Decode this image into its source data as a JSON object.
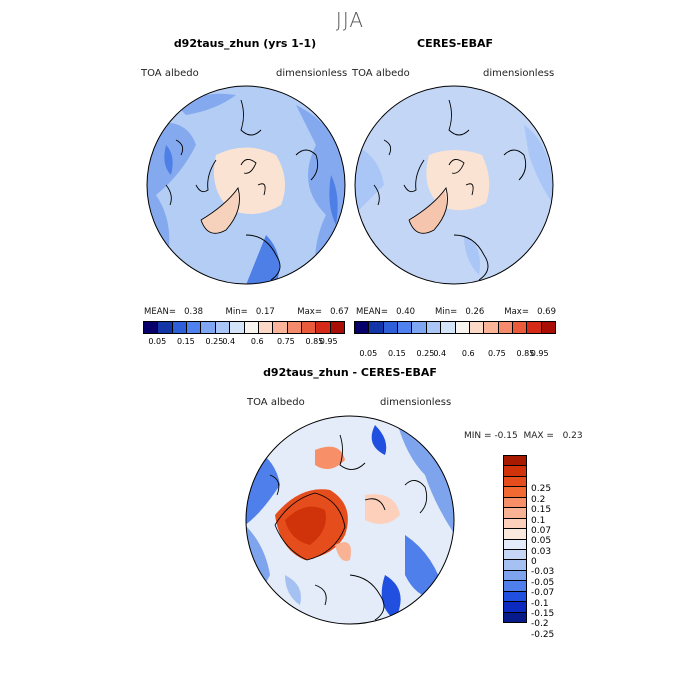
{
  "season": "JJA",
  "panels": [
    {
      "title": "d92taus_zhun (yrs 1-1)",
      "var_label": "TOA albedo",
      "units": "dimensionless",
      "stats": {
        "mean_label": "MEAN=",
        "mean": "0.38",
        "min_label": "Min=",
        "min": "0.17",
        "max_label": "Max=",
        "max": "0.67"
      }
    },
    {
      "title": "CERES-EBAF",
      "var_label": "TOA albedo",
      "units": "dimensionless",
      "stats": {
        "mean_label": "MEAN=",
        "mean": "0.40",
        "min_label": "Min=",
        "min": "0.26",
        "max_label": "Max=",
        "max": "0.69"
      }
    }
  ],
  "colorbar": {
    "labels": [
      "0.05",
      "0.15",
      "0.25",
      "0.4",
      "0.6",
      "0.75",
      "0.85",
      "0.95"
    ],
    "colors": [
      "#08006a",
      "#1236a8",
      "#2e5fd9",
      "#4f82ee",
      "#7fa6f3",
      "#a9c6f7",
      "#d3e3f8",
      "#f7f3ef",
      "#fcd9c7",
      "#f9b49a",
      "#f38b6c",
      "#ea5b3b",
      "#d42a17",
      "#a80d06"
    ]
  },
  "diff": {
    "title": "d92taus_zhun - CERES-EBAF",
    "var_label": "TOA albedo",
    "units": "dimensionless",
    "min_label": "MIN =",
    "min": "-0.15",
    "max_label": "MAX =",
    "max": "0.23",
    "levels": [
      "0.25",
      "0.2",
      "0.15",
      "0.1",
      "0.07",
      "0.05",
      "0.03",
      "0",
      "-0.03",
      "-0.05",
      "-0.07",
      "-0.1",
      "-0.15",
      "-0.2",
      "-0.25"
    ],
    "colors": [
      "#a81a00",
      "#d0320a",
      "#e64d1c",
      "#f26a32",
      "#f79068",
      "#fab294",
      "#fcd0bb",
      "#fbe8dc",
      "#e3ecf8",
      "#c5d7f4",
      "#a5c1f1",
      "#7ea4ee",
      "#4e7fea",
      "#2150e0",
      "#0c29c0",
      "#061a8a"
    ]
  },
  "palette": {
    "land_pale": "#fbe3d4",
    "sea_light": "#b4cdf5",
    "sea_mid": "#84a9ee",
    "sea_dark": "#4d7fe6",
    "coast": "#000000"
  }
}
